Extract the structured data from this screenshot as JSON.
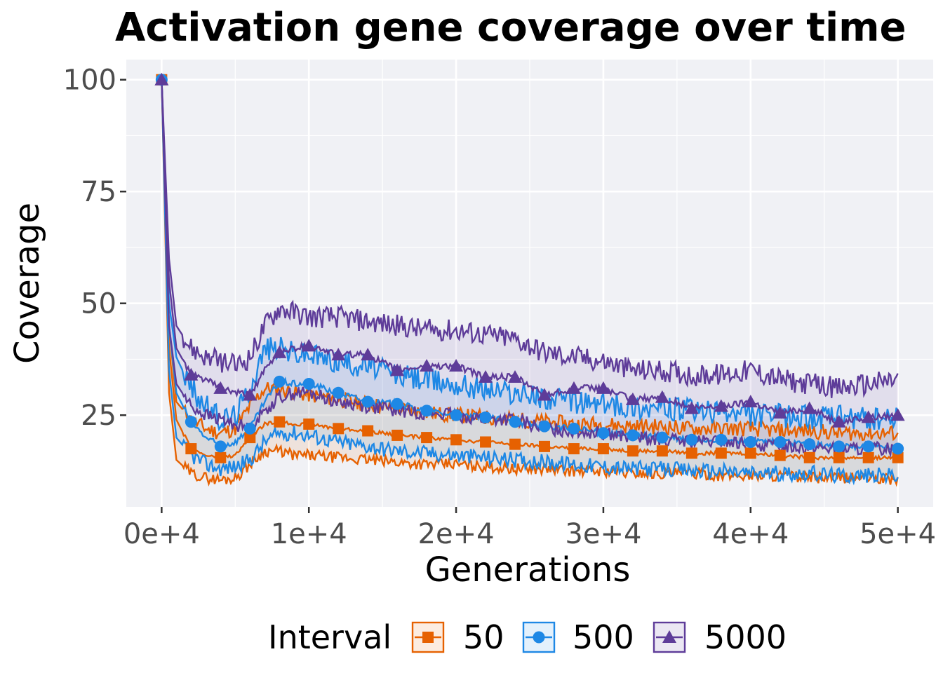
{
  "chart_data": {
    "type": "line",
    "title": "Activation gene coverage over time",
    "xlabel": "Generations",
    "ylabel": "Coverage",
    "xlim": [
      -2400,
      52400
    ],
    "ylim": [
      4.5,
      104.5
    ],
    "x_ticks": [
      0,
      10000,
      20000,
      30000,
      40000,
      50000
    ],
    "x_tick_labels": [
      "0e+4",
      "1e+4",
      "2e+4",
      "3e+4",
      "4e+4",
      "5e+4"
    ],
    "y_ticks": [
      25,
      50,
      75,
      100
    ],
    "y_tick_labels": [
      "25",
      "50",
      "75",
      "100"
    ],
    "grid": true,
    "background": "#f0f1f5",
    "legend": {
      "position": "bottom",
      "title": "Interval",
      "entries": [
        "50",
        "500",
        "5000"
      ]
    },
    "x": [
      0,
      500,
      1000,
      2000,
      3000,
      4000,
      5000,
      6000,
      7000,
      8000,
      9000,
      10000,
      12000,
      14000,
      16000,
      18000,
      20000,
      22000,
      24000,
      26000,
      28000,
      30000,
      32000,
      34000,
      36000,
      38000,
      40000,
      42000,
      44000,
      46000,
      48000,
      50000
    ],
    "series": [
      {
        "name": "50",
        "color": "#e66101",
        "marker": "square",
        "median": [
          100,
          40,
          24,
          17.5,
          16,
          15.5,
          16,
          20,
          23,
          23.5,
          23,
          23,
          22,
          21.5,
          20.5,
          20,
          19.5,
          19,
          18.5,
          18,
          17.5,
          17.5,
          17,
          17,
          16.5,
          16.5,
          16.5,
          16,
          15.5,
          15.5,
          15.5,
          15.5
        ],
        "lower": [
          100,
          30,
          15,
          12,
          11,
          10.5,
          11,
          14,
          17,
          17,
          16,
          16,
          15.5,
          15,
          14.5,
          14,
          14,
          13.5,
          13,
          13,
          12.5,
          12.5,
          12,
          12,
          12,
          11.5,
          11.5,
          11.5,
          11,
          11,
          11,
          10.5
        ],
        "upper": [
          100,
          45,
          28,
          24,
          22,
          21,
          22,
          27,
          31,
          31,
          30,
          29.5,
          28.5,
          27.5,
          26.5,
          25.5,
          25,
          24.5,
          24,
          23.5,
          23,
          23,
          22.5,
          22.5,
          22,
          22,
          22,
          21.5,
          21.5,
          21,
          21,
          21
        ]
      },
      {
        "name": "500",
        "color": "#1e88e5",
        "marker": "circle",
        "median": [
          100,
          45,
          30,
          23.5,
          20,
          18,
          19,
          22,
          28,
          32.5,
          32,
          32,
          30,
          28,
          27.5,
          26,
          25,
          24.5,
          23.5,
          22.5,
          22,
          21,
          20.5,
          20,
          19.5,
          19.5,
          19,
          19,
          18.5,
          18,
          18,
          17.5
        ],
        "lower": [
          100,
          35,
          20,
          16,
          14,
          13,
          13.5,
          15,
          19,
          21,
          21,
          20.5,
          19,
          18,
          17,
          16.5,
          16,
          15.5,
          15,
          14.5,
          14,
          13.5,
          13,
          13,
          12.5,
          12.5,
          12,
          12,
          12,
          11.5,
          11.5,
          11.5
        ],
        "upper": [
          100,
          50,
          38,
          31,
          27,
          24,
          25,
          31,
          40,
          40,
          39,
          38.5,
          37,
          36,
          34,
          33,
          32,
          31,
          30,
          29,
          28,
          27.5,
          27,
          26.5,
          26,
          25.5,
          25,
          25,
          24.5,
          24.5,
          24,
          24
        ]
      },
      {
        "name": "5000",
        "color": "#5e3c99",
        "marker": "triangle",
        "median": [
          100,
          55,
          40,
          34,
          33,
          31,
          30,
          29.5,
          35,
          39,
          40,
          40.5,
          38.5,
          38.5,
          35,
          36,
          36,
          33.5,
          33.5,
          29.5,
          31,
          31,
          28.5,
          29,
          26.5,
          27,
          28,
          25.5,
          26.5,
          23.5,
          24.5,
          25
        ],
        "lower": [
          100,
          45,
          32,
          27,
          25,
          24,
          23,
          22,
          26,
          29,
          30,
          30,
          28,
          27,
          26,
          25.5,
          25,
          24,
          24,
          22,
          21.5,
          21,
          20,
          19.5,
          19,
          19,
          18.5,
          18,
          18,
          17.5,
          17.5,
          17.5
        ],
        "upper": [
          100,
          60,
          45,
          40,
          38,
          37,
          36,
          38,
          45,
          49,
          48,
          47,
          47,
          46,
          45,
          44,
          44,
          43,
          42,
          39,
          38,
          37,
          35,
          35,
          34,
          34,
          35,
          33,
          32,
          31,
          32,
          33
        ]
      }
    ],
    "marker_x": [
      0,
      2000,
      4000,
      6000,
      8000,
      10000,
      12000,
      14000,
      16000,
      18000,
      20000,
      22000,
      24000,
      26000,
      28000,
      30000,
      32000,
      34000,
      36000,
      38000,
      40000,
      42000,
      44000,
      46000,
      48000,
      50000
    ]
  }
}
